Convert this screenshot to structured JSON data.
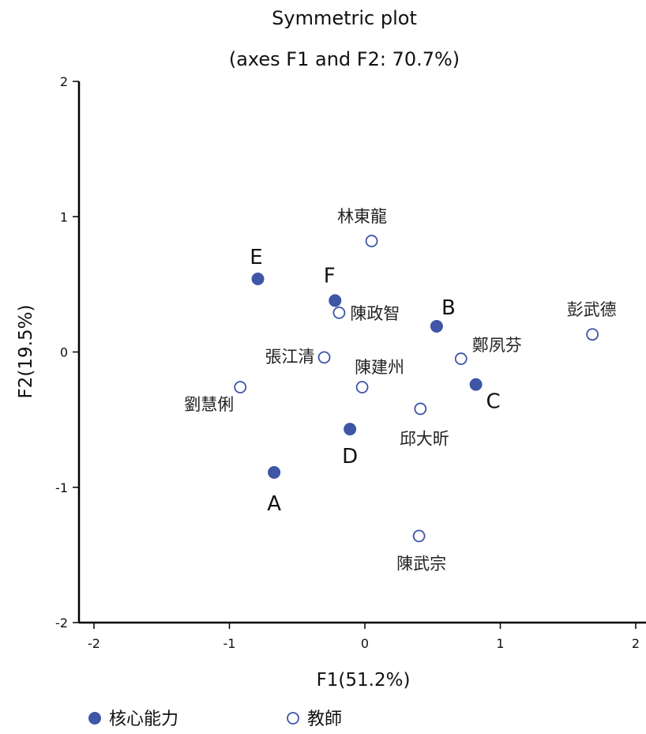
{
  "chart_data": {
    "type": "scatter",
    "title": "Symmetric plot",
    "subtitle": "(axes F1 and F2: 70.7%)",
    "xlabel": "F1(51.2%)",
    "ylabel": "F2(19.5%)",
    "xlim": [
      -2.1,
      2.1
    ],
    "ylim": [
      -2,
      2
    ],
    "xticks": [
      "-2",
      "-1",
      "0",
      "1",
      "2"
    ],
    "yticks": [
      "-2",
      "-1",
      "0",
      "1",
      "2"
    ],
    "grid": false,
    "legend_position": "bottom-left",
    "series": [
      {
        "name": "核心能力",
        "marker": "filled-circle",
        "color": "#3f55a6",
        "points": [
          {
            "label": "A",
            "x": -0.67,
            "y": -0.89
          },
          {
            "label": "B",
            "x": 0.53,
            "y": 0.19
          },
          {
            "label": "C",
            "x": 0.82,
            "y": -0.24
          },
          {
            "label": "D",
            "x": -0.11,
            "y": -0.57
          },
          {
            "label": "E",
            "x": -0.79,
            "y": 0.54
          },
          {
            "label": "F",
            "x": -0.22,
            "y": 0.38
          }
        ]
      },
      {
        "name": "教師",
        "marker": "hollow-circle",
        "color": "#3f55a6",
        "points": [
          {
            "label": "林東龍",
            "x": 0.05,
            "y": 0.82
          },
          {
            "label": "陳政智",
            "x": -0.19,
            "y": 0.29
          },
          {
            "label": "彭武德",
            "x": 1.68,
            "y": 0.13
          },
          {
            "label": "鄭夙芬",
            "x": 0.71,
            "y": -0.05
          },
          {
            "label": "張江清",
            "x": -0.3,
            "y": -0.04
          },
          {
            "label": "陳建州",
            "x": -0.02,
            "y": -0.26
          },
          {
            "label": "劉慧俐",
            "x": -0.92,
            "y": -0.26
          },
          {
            "label": "邱大昕",
            "x": 0.41,
            "y": -0.42
          },
          {
            "label": "陳武宗",
            "x": 0.4,
            "y": -1.36
          }
        ]
      }
    ]
  }
}
